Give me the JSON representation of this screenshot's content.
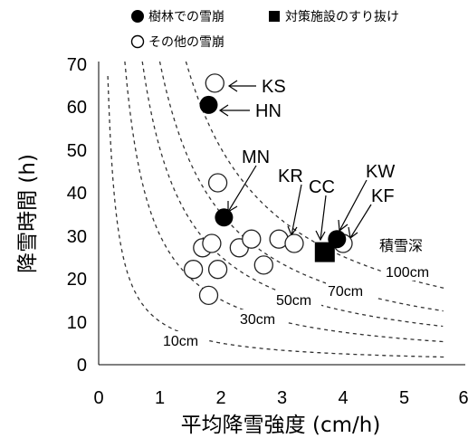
{
  "chart_data": {
    "type": "scatter",
    "xlabel": "平均降雪強度 (cm/h)",
    "ylabel": "降雪時間 (h)",
    "xlim": [
      0,
      6
    ],
    "ylim": [
      0,
      70
    ],
    "x_ticks": [
      "0",
      "1",
      "2",
      "3",
      "4",
      "5",
      "6"
    ],
    "y_ticks": [
      "0",
      "10",
      "20",
      "30",
      "40",
      "50",
      "60",
      "70"
    ],
    "legend": {
      "items": [
        {
          "marker": "filled-circle",
          "label": "樹林での雪崩"
        },
        {
          "marker": "filled-square",
          "label": "対策施設のすり抜け"
        },
        {
          "marker": "open-circle",
          "label": "その他の雪崩"
        }
      ],
      "placement": "top"
    },
    "series": [
      {
        "marker": "filled-circle",
        "points": [
          {
            "x": 1.8,
            "y": 60,
            "label": "HN"
          },
          {
            "x": 2.05,
            "y": 34,
            "label": "MN"
          },
          {
            "x": 3.9,
            "y": 29,
            "label": "KW"
          }
        ]
      },
      {
        "marker": "filled-square",
        "points": [
          {
            "x": 3.7,
            "y": 26,
            "label": "CC"
          }
        ]
      },
      {
        "marker": "open-circle",
        "points": [
          {
            "x": 1.9,
            "y": 65,
            "label": "KS"
          },
          {
            "x": 1.95,
            "y": 42
          },
          {
            "x": 1.7,
            "y": 27
          },
          {
            "x": 1.85,
            "y": 28
          },
          {
            "x": 1.55,
            "y": 22
          },
          {
            "x": 1.95,
            "y": 22
          },
          {
            "x": 1.8,
            "y": 16
          },
          {
            "x": 2.3,
            "y": 27
          },
          {
            "x": 2.5,
            "y": 29
          },
          {
            "x": 2.7,
            "y": 23
          },
          {
            "x": 2.95,
            "y": 29
          },
          {
            "x": 3.2,
            "y": 28,
            "label": "KR"
          },
          {
            "x": 4.0,
            "y": 28,
            "label": "KF"
          }
        ]
      }
    ],
    "contours": {
      "title": "積雪深",
      "lines": [
        {
          "depth": 10,
          "label": "10cm"
        },
        {
          "depth": 30,
          "label": "30cm"
        },
        {
          "depth": 50,
          "label": "50cm"
        },
        {
          "depth": 70,
          "label": "70cm"
        },
        {
          "depth": 100,
          "label": "100cm"
        }
      ]
    }
  }
}
